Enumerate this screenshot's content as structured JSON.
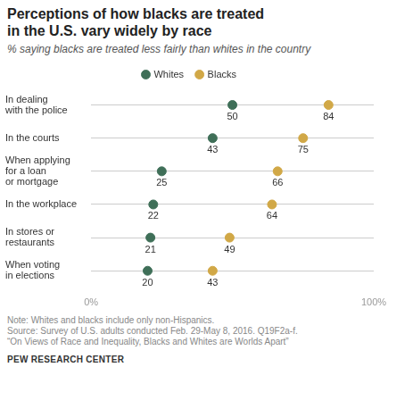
{
  "chart_data": {
    "type": "dot",
    "orientation": "horizontal",
    "title": "Perceptions of how blacks are treated in the U.S. vary widely by race",
    "subtitle": "% saying blacks are treated less fairly than whites in the country",
    "categories": [
      "In dealing\nwith the police",
      "In the courts",
      "When applying\nfor a loan\nor mortgage",
      "In the workplace",
      "In stores or\nrestaurants",
      "When voting\nin elections"
    ],
    "series": [
      {
        "name": "Whites",
        "color": "#3f6f58",
        "values": [
          50,
          43,
          25,
          22,
          21,
          20
        ]
      },
      {
        "name": "Blacks",
        "color": "#d1a847",
        "values": [
          84,
          75,
          66,
          64,
          49,
          43
        ]
      }
    ],
    "xlim": [
      0,
      100
    ],
    "xticks": [
      {
        "value": 0,
        "label": "0%"
      },
      {
        "value": 100,
        "label": "100%"
      }
    ],
    "grid": true,
    "legend": "top",
    "data_labels": true,
    "marker": "circle",
    "notes": [
      "Note: Whites and blacks include only non-Hispanics.",
      "Source: Survey of U.S. adults conducted Feb. 29-May 8, 2016. Q19F2a-f.",
      "“On Views of Race and Inequality, Blacks and Whites are Worlds Apart”"
    ],
    "credit": "PEW RESEARCH CENTER"
  }
}
